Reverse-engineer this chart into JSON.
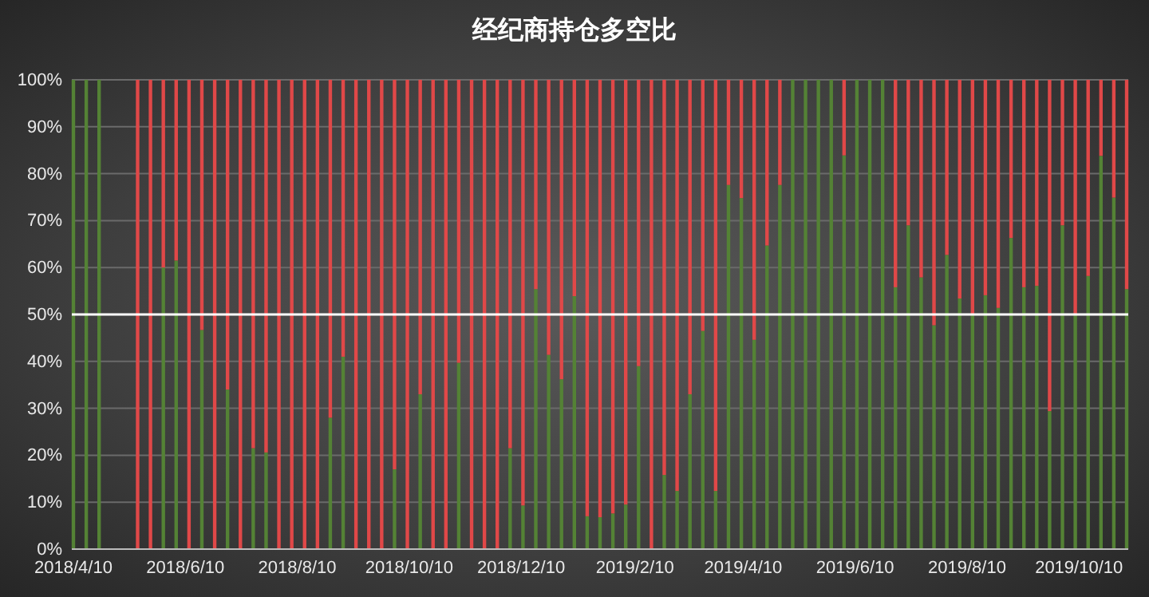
{
  "chart_data": {
    "type": "bar",
    "title": "经纪商持仓多空比",
    "stacked": true,
    "x": [
      "2018-04-10",
      "2018-04-17",
      "2018-04-24",
      "2018-05-01",
      "2018-05-08",
      "2018-05-15",
      "2018-05-22",
      "2018-05-29",
      "2018-06-05",
      "2018-06-12",
      "2018-06-19",
      "2018-06-26",
      "2018-07-03",
      "2018-07-10",
      "2018-07-17",
      "2018-07-24",
      "2018-07-31",
      "2018-08-07",
      "2018-08-14",
      "2018-08-21",
      "2018-08-28",
      "2018-09-04",
      "2018-09-11",
      "2018-09-18",
      "2018-09-25",
      "2018-10-02",
      "2018-10-09",
      "2018-10-16",
      "2018-10-23",
      "2018-10-30",
      "2018-11-06",
      "2018-11-13",
      "2018-11-20",
      "2018-11-27",
      "2018-12-04",
      "2018-12-11",
      "2018-12-18",
      "2018-12-25",
      "2019-01-01",
      "2019-01-08",
      "2019-01-15",
      "2019-01-22",
      "2019-01-29",
      "2019-02-05",
      "2019-02-12",
      "2019-02-19",
      "2019-02-26",
      "2019-03-05",
      "2019-03-12",
      "2019-03-19",
      "2019-03-26",
      "2019-04-02",
      "2019-04-09",
      "2019-04-16",
      "2019-04-23",
      "2019-04-30",
      "2019-05-07",
      "2019-05-14",
      "2019-05-21",
      "2019-05-28",
      "2019-06-04",
      "2019-06-11",
      "2019-06-18",
      "2019-06-25",
      "2019-07-02",
      "2019-07-09",
      "2019-07-16",
      "2019-07-23",
      "2019-07-30",
      "2019-08-06",
      "2019-08-13",
      "2019-08-20",
      "2019-08-27",
      "2019-09-03",
      "2019-09-10",
      "2019-09-17",
      "2019-09-24",
      "2019-10-01",
      "2019-10-08",
      "2019-10-15",
      "2019-10-22",
      "2019-10-29",
      "2019-11-05"
    ],
    "series": [
      {
        "color": "#548235",
        "values": [
          100,
          100,
          100,
          null,
          null,
          0,
          0,
          60,
          61.5,
          0,
          46.7,
          0,
          34,
          0,
          21.5,
          20.6,
          0,
          0,
          0,
          0,
          28,
          41,
          0,
          0,
          0,
          17,
          0,
          33,
          0,
          0,
          39.7,
          0,
          0,
          0,
          21.5,
          9.3,
          55.4,
          41.4,
          36.2,
          53.9,
          7,
          6.8,
          7.6,
          9.5,
          39,
          0,
          15.8,
          12.4,
          33,
          46.5,
          12.4,
          77.6,
          74.8,
          44.6,
          64.7,
          77.6,
          100,
          100,
          100,
          100,
          83.9,
          100,
          100,
          100,
          55.8,
          69,
          57.9,
          47.7,
          62.7,
          53.4,
          50,
          54.1,
          51.4,
          66.3,
          55.8,
          56.1,
          29.4,
          69,
          50,
          58.2,
          83.8,
          74.9,
          55.4
        ]
      },
      {
        "color": "#e04848",
        "values": [
          0,
          0,
          0,
          null,
          null,
          100,
          100,
          40,
          38.5,
          100,
          53.3,
          100,
          66,
          100,
          78.5,
          79.4,
          100,
          100,
          100,
          100,
          72,
          59,
          100,
          100,
          100,
          83,
          100,
          67,
          100,
          100,
          60.3,
          100,
          100,
          100,
          78.5,
          90.7,
          44.6,
          58.6,
          63.8,
          46.1,
          93,
          93.2,
          92.4,
          90.5,
          61,
          100,
          84.2,
          87.6,
          67,
          53.5,
          87.6,
          22.4,
          25.2,
          55.4,
          35.3,
          22.4,
          0,
          0,
          0,
          0,
          16.1,
          0,
          0,
          0,
          44.2,
          31,
          42.1,
          52.3,
          37.3,
          46.6,
          50,
          45.9,
          48.6,
          33.7,
          44.2,
          43.9,
          70.6,
          31,
          50,
          41.8,
          16.2,
          25.1,
          44.6
        ]
      }
    ],
    "xlim": [
      "2018-04-10",
      "2019-11-05"
    ],
    "xticks": [
      {
        "value": "2018-04-10",
        "label": "2018/4/10"
      },
      {
        "value": "2018-06-10",
        "label": "2018/6/10"
      },
      {
        "value": "2018-08-10",
        "label": "2018/8/10"
      },
      {
        "value": "2018-10-10",
        "label": "2018/10/10"
      },
      {
        "value": "2018-12-10",
        "label": "2018/12/10"
      },
      {
        "value": "2019-02-10",
        "label": "2019/2/10"
      },
      {
        "value": "2019-04-10",
        "label": "2019/4/10"
      },
      {
        "value": "2019-06-10",
        "label": "2019/6/10"
      },
      {
        "value": "2019-08-10",
        "label": "2019/8/10"
      },
      {
        "value": "2019-10-10",
        "label": "2019/10/10"
      }
    ],
    "ylim": [
      0,
      100
    ],
    "yticks": [
      {
        "value": 0,
        "label": "0%"
      },
      {
        "value": 10,
        "label": "10%"
      },
      {
        "value": 20,
        "label": "20%"
      },
      {
        "value": 30,
        "label": "30%"
      },
      {
        "value": 40,
        "label": "40%"
      },
      {
        "value": 50,
        "label": "50%"
      },
      {
        "value": 60,
        "label": "60%"
      },
      {
        "value": 70,
        "label": "70%"
      },
      {
        "value": 80,
        "label": "80%"
      },
      {
        "value": 90,
        "label": "90%"
      },
      {
        "value": 100,
        "label": "100%"
      }
    ],
    "grid": "y",
    "ref_lines": [
      {
        "axis": "y",
        "value": 50,
        "color": "#ffffff"
      }
    ]
  }
}
